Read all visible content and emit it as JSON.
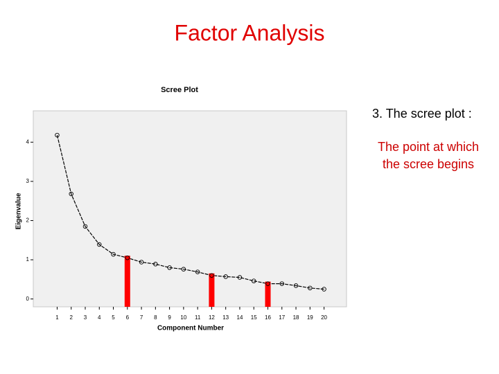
{
  "slide_title": "Factor Analysis",
  "notes": {
    "heading": "3. The scree plot :",
    "lines": [
      "The point at which",
      "the scree begins"
    ]
  },
  "chart_data": {
    "type": "line",
    "title": "Scree Plot",
    "x_label": "Component Number",
    "y_label": "Eigenvalue",
    "x": [
      1,
      2,
      3,
      4,
      5,
      6,
      7,
      8,
      9,
      10,
      11,
      12,
      13,
      14,
      15,
      16,
      17,
      18,
      19,
      20
    ],
    "series": [
      {
        "name": "Eigenvalue",
        "color": "#000000",
        "values": [
          4.18,
          2.68,
          1.85,
          1.39,
          1.14,
          1.05,
          0.94,
          0.89,
          0.8,
          0.76,
          0.69,
          0.6,
          0.57,
          0.55,
          0.46,
          0.39,
          0.39,
          0.34,
          0.28,
          0.25
        ]
      }
    ],
    "highlights": [
      6,
      12,
      16
    ],
    "highlight_color": "#ff0000",
    "xlim": [
      -0.7,
      21.6
    ],
    "ylim": [
      -0.2,
      4.8
    ],
    "xticks": [
      1,
      2,
      3,
      4,
      5,
      6,
      7,
      8,
      9,
      10,
      11,
      12,
      13,
      14,
      15,
      16,
      17,
      18,
      19,
      20
    ],
    "yticks": [
      0,
      1,
      2,
      3,
      4
    ],
    "grid": false
  }
}
